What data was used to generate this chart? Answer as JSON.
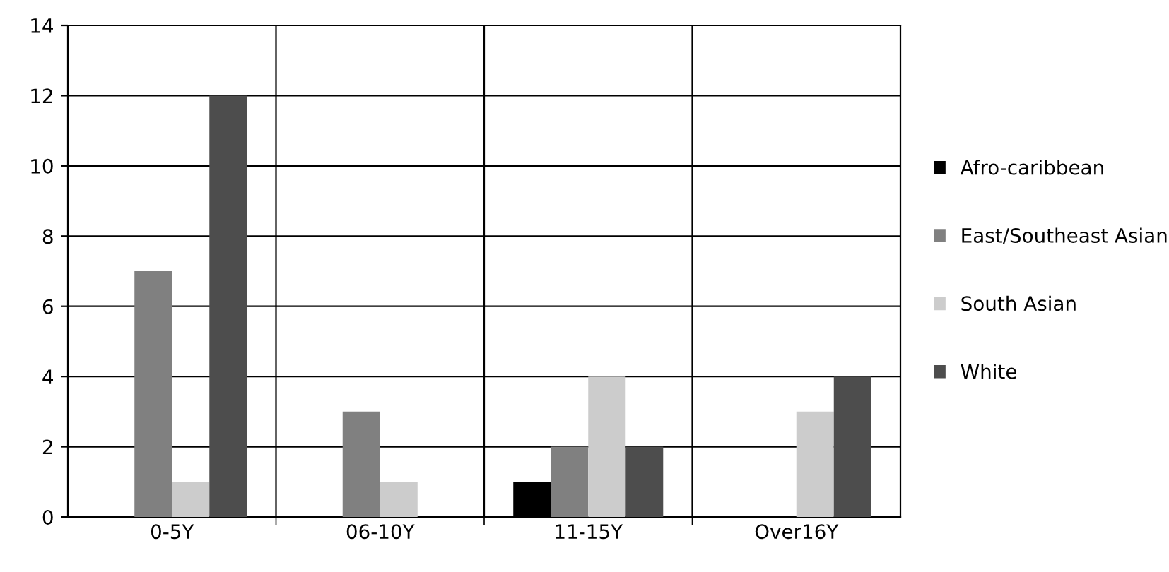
{
  "chart_data": {
    "type": "bar",
    "categories": [
      "0-5Y",
      "06-10Y",
      "11-15Y",
      "Over16Y"
    ],
    "series": [
      {
        "name": "Afro-caribbean",
        "color": "#000000",
        "values": [
          0,
          0,
          1,
          0
        ]
      },
      {
        "name": "East/Southeast Asian",
        "color": "#808080",
        "values": [
          7,
          3,
          2,
          0
        ]
      },
      {
        "name": "South Asian",
        "color": "#cccccc",
        "values": [
          1,
          1,
          4,
          3
        ]
      },
      {
        "name": "White",
        "color": "#4d4d4d",
        "values": [
          12,
          0,
          2,
          4
        ]
      }
    ],
    "ylim": [
      0,
      14
    ],
    "yticks": [
      0,
      2,
      4,
      6,
      8,
      10,
      12,
      14
    ],
    "grid": true,
    "legend": "right"
  }
}
